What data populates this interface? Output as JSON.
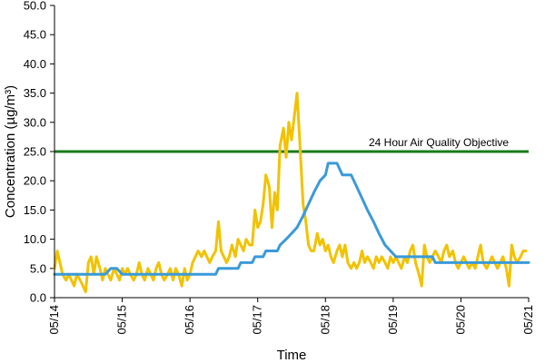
{
  "chart_data": {
    "type": "line",
    "xlabel": "Time",
    "ylabel": "Concentration (µg/m³)",
    "x_unit": "days",
    "xlim": [
      0,
      7
    ],
    "x_tick_labels": [
      "05/14",
      "05/15",
      "05/16",
      "05/17",
      "05/18",
      "05/19",
      "05/20",
      "05/21"
    ],
    "ylim": [
      0,
      50
    ],
    "y_ticks": [
      0,
      5,
      10,
      15,
      20,
      25,
      30,
      35,
      40,
      45,
      50
    ],
    "y_tick_labels": [
      "0.0",
      "5.0",
      "10.0",
      "15.0",
      "20.0",
      "25.0",
      "30.0",
      "35.0",
      "40.0",
      "45.0",
      "50.0"
    ],
    "grid": false,
    "reference_line": {
      "label": "24 Hour Air Quality Objective",
      "value": 25,
      "color": "#1a7a1a"
    },
    "series": [
      {
        "color": "#f2c200",
        "points": [
          [
            0.0,
            5
          ],
          [
            0.04,
            8
          ],
          [
            0.08,
            6
          ],
          [
            0.12,
            4
          ],
          [
            0.17,
            3
          ],
          [
            0.21,
            4
          ],
          [
            0.25,
            3
          ],
          [
            0.29,
            2
          ],
          [
            0.33,
            4
          ],
          [
            0.38,
            3
          ],
          [
            0.42,
            2
          ],
          [
            0.46,
            1
          ],
          [
            0.5,
            6
          ],
          [
            0.54,
            7
          ],
          [
            0.58,
            4
          ],
          [
            0.62,
            7
          ],
          [
            0.67,
            5
          ],
          [
            0.71,
            3
          ],
          [
            0.75,
            5
          ],
          [
            0.79,
            4
          ],
          [
            0.83,
            3
          ],
          [
            0.88,
            5
          ],
          [
            0.92,
            4
          ],
          [
            0.96,
            3
          ],
          [
            1.0,
            5
          ],
          [
            1.04,
            4
          ],
          [
            1.08,
            5
          ],
          [
            1.12,
            4
          ],
          [
            1.17,
            3
          ],
          [
            1.21,
            4
          ],
          [
            1.25,
            6
          ],
          [
            1.29,
            4
          ],
          [
            1.33,
            3
          ],
          [
            1.38,
            5
          ],
          [
            1.42,
            4
          ],
          [
            1.46,
            3
          ],
          [
            1.5,
            5
          ],
          [
            1.54,
            6
          ],
          [
            1.58,
            4
          ],
          [
            1.62,
            3
          ],
          [
            1.67,
            4
          ],
          [
            1.71,
            5
          ],
          [
            1.75,
            3
          ],
          [
            1.79,
            5
          ],
          [
            1.83,
            4
          ],
          [
            1.88,
            2
          ],
          [
            1.92,
            5
          ],
          [
            1.96,
            3
          ],
          [
            2.0,
            4
          ],
          [
            2.04,
            6
          ],
          [
            2.08,
            7
          ],
          [
            2.12,
            8
          ],
          [
            2.17,
            7
          ],
          [
            2.21,
            8
          ],
          [
            2.25,
            7
          ],
          [
            2.29,
            6
          ],
          [
            2.33,
            7
          ],
          [
            2.38,
            8
          ],
          [
            2.42,
            13
          ],
          [
            2.46,
            8
          ],
          [
            2.5,
            7
          ],
          [
            2.54,
            6
          ],
          [
            2.58,
            7
          ],
          [
            2.62,
            9
          ],
          [
            2.67,
            7
          ],
          [
            2.71,
            10
          ],
          [
            2.75,
            9
          ],
          [
            2.79,
            8
          ],
          [
            2.83,
            10
          ],
          [
            2.88,
            9
          ],
          [
            2.92,
            9
          ],
          [
            2.96,
            15
          ],
          [
            3.0,
            12
          ],
          [
            3.04,
            13
          ],
          [
            3.08,
            16
          ],
          [
            3.12,
            21
          ],
          [
            3.17,
            19
          ],
          [
            3.21,
            12
          ],
          [
            3.25,
            18
          ],
          [
            3.29,
            15
          ],
          [
            3.33,
            26
          ],
          [
            3.38,
            29
          ],
          [
            3.42,
            24
          ],
          [
            3.46,
            30
          ],
          [
            3.5,
            27
          ],
          [
            3.54,
            31
          ],
          [
            3.58,
            35
          ],
          [
            3.62,
            27
          ],
          [
            3.67,
            16
          ],
          [
            3.71,
            13
          ],
          [
            3.75,
            9
          ],
          [
            3.79,
            8
          ],
          [
            3.83,
            8
          ],
          [
            3.88,
            11
          ],
          [
            3.92,
            9
          ],
          [
            3.96,
            10
          ],
          [
            4.0,
            8
          ],
          [
            4.04,
            9
          ],
          [
            4.08,
            7
          ],
          [
            4.12,
            6
          ],
          [
            4.17,
            8
          ],
          [
            4.21,
            9
          ],
          [
            4.25,
            7
          ],
          [
            4.29,
            9
          ],
          [
            4.33,
            6
          ],
          [
            4.38,
            5
          ],
          [
            4.42,
            6
          ],
          [
            4.46,
            5
          ],
          [
            4.5,
            6
          ],
          [
            4.54,
            8
          ],
          [
            4.58,
            6
          ],
          [
            4.62,
            7
          ],
          [
            4.67,
            6
          ],
          [
            4.71,
            5
          ],
          [
            4.75,
            7
          ],
          [
            4.79,
            6
          ],
          [
            4.83,
            7
          ],
          [
            4.88,
            6
          ],
          [
            4.92,
            5
          ],
          [
            4.96,
            7
          ],
          [
            5.0,
            6
          ],
          [
            5.04,
            7
          ],
          [
            5.08,
            6
          ],
          [
            5.12,
            5
          ],
          [
            5.17,
            7
          ],
          [
            5.21,
            6
          ],
          [
            5.25,
            8
          ],
          [
            5.29,
            9
          ],
          [
            5.33,
            6
          ],
          [
            5.38,
            4
          ],
          [
            5.42,
            2
          ],
          [
            5.46,
            9
          ],
          [
            5.5,
            7
          ],
          [
            5.54,
            6
          ],
          [
            5.58,
            7
          ],
          [
            5.62,
            8
          ],
          [
            5.67,
            7
          ],
          [
            5.71,
            6
          ],
          [
            5.75,
            8
          ],
          [
            5.79,
            9
          ],
          [
            5.83,
            7
          ],
          [
            5.88,
            8
          ],
          [
            5.92,
            6
          ],
          [
            5.96,
            5
          ],
          [
            6.0,
            6
          ],
          [
            6.04,
            7
          ],
          [
            6.08,
            6
          ],
          [
            6.12,
            5
          ],
          [
            6.17,
            6
          ],
          [
            6.21,
            5
          ],
          [
            6.25,
            7
          ],
          [
            6.29,
            9
          ],
          [
            6.33,
            6
          ],
          [
            6.38,
            5
          ],
          [
            6.42,
            6
          ],
          [
            6.46,
            7
          ],
          [
            6.5,
            6
          ],
          [
            6.54,
            5
          ],
          [
            6.58,
            6
          ],
          [
            6.62,
            7
          ],
          [
            6.67,
            5
          ],
          [
            6.71,
            2
          ],
          [
            6.75,
            9
          ],
          [
            6.79,
            7
          ],
          [
            6.83,
            6
          ],
          [
            6.88,
            7
          ],
          [
            6.92,
            8
          ],
          [
            6.96,
            8
          ]
        ]
      },
      {
        "color": "#3a9ad9",
        "points": [
          [
            0.0,
            4
          ],
          [
            0.75,
            4
          ],
          [
            0.83,
            5
          ],
          [
            0.92,
            5
          ],
          [
            1.0,
            4
          ],
          [
            2.38,
            4
          ],
          [
            2.42,
            5
          ],
          [
            2.71,
            5
          ],
          [
            2.75,
            6
          ],
          [
            2.92,
            6
          ],
          [
            2.96,
            7
          ],
          [
            3.08,
            7
          ],
          [
            3.12,
            8
          ],
          [
            3.29,
            8
          ],
          [
            3.33,
            9
          ],
          [
            3.42,
            10
          ],
          [
            3.5,
            11
          ],
          [
            3.58,
            12
          ],
          [
            3.67,
            14
          ],
          [
            3.75,
            16
          ],
          [
            3.83,
            18
          ],
          [
            3.92,
            20
          ],
          [
            4.0,
            21
          ],
          [
            4.04,
            23
          ],
          [
            4.17,
            23
          ],
          [
            4.25,
            21
          ],
          [
            4.38,
            21
          ],
          [
            4.46,
            19
          ],
          [
            4.54,
            17
          ],
          [
            4.62,
            15
          ],
          [
            4.71,
            13
          ],
          [
            4.79,
            11
          ],
          [
            4.88,
            9
          ],
          [
            4.96,
            8
          ],
          [
            5.04,
            7
          ],
          [
            5.58,
            7
          ],
          [
            5.62,
            6
          ],
          [
            7.0,
            6
          ]
        ]
      }
    ]
  }
}
